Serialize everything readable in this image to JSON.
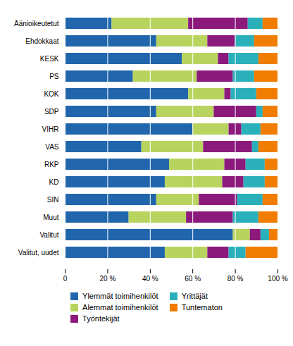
{
  "chart_data": {
    "type": "bar",
    "orientation": "horizontal",
    "stacked": true,
    "grid": true,
    "legend": "bottom",
    "categories": [
      "Äänioikeutetut",
      "Ehdokkaat",
      "KESK",
      "PS",
      "KOK",
      "SDP",
      "VIHR",
      "VAS",
      "RKP",
      "KD",
      "SIN",
      "Muut",
      "Valitut",
      "Valitut, uudet"
    ],
    "series": [
      {
        "name": "Ylemmät toimihenkilöt",
        "color": "#2166ac",
        "values": [
          22,
          43,
          55,
          32,
          58,
          43,
          60,
          36,
          49,
          47,
          43,
          30,
          79,
          47
        ]
      },
      {
        "name": "Alemmat toimihenkilöt",
        "color": "#b8d45e",
        "values": [
          36,
          24,
          17,
          30,
          17,
          27,
          17,
          29,
          26,
          27,
          20,
          27,
          8,
          20
        ]
      },
      {
        "name": "Työntekijät",
        "color": "#8b1a7c",
        "values": [
          28,
          13,
          5,
          17,
          3,
          20,
          6,
          23,
          10,
          10,
          18,
          22,
          5,
          10
        ]
      },
      {
        "name": "Yrittäjät",
        "color": "#2ab0ba",
        "values": [
          7,
          9,
          14,
          10,
          12,
          3,
          9,
          3,
          9,
          10,
          12,
          12,
          4,
          8
        ]
      },
      {
        "name": "Tuntematon",
        "color": "#f07d00",
        "values": [
          7,
          11,
          9,
          11,
          10,
          7,
          8,
          9,
          6,
          6,
          7,
          9,
          4,
          15
        ]
      }
    ],
    "xlim": [
      0,
      100
    ],
    "xticks": [
      0,
      {
        "value": 20,
        "label": "20 %"
      },
      {
        "value": 40,
        "label": "40 %"
      },
      {
        "value": 60,
        "label": "60 %"
      },
      {
        "value": 80,
        "label": "80 %"
      },
      {
        "value": 100,
        "label": "100 %"
      }
    ]
  }
}
